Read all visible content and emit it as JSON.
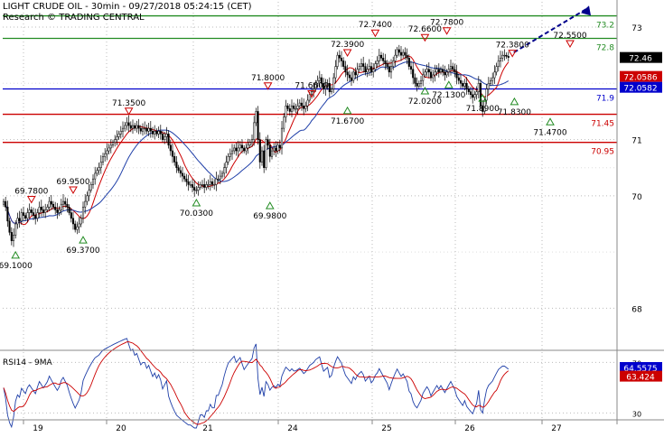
{
  "header": {
    "title": "LIGHT CRUDE OIL - 30min - 09/27/2018 05:24:15 (CET)",
    "subtitle": "Research © TRADING CENTRAL"
  },
  "colors": {
    "resistance": "#228B22",
    "pivot": "#0000CC",
    "support": "#CC0000",
    "ma_fast": "#CC0000",
    "ma_slow": "#1F3FA8",
    "candle": "#000000",
    "arrow": "#00008B",
    "price_tag": "#000000"
  },
  "chart_data": [
    {
      "type": "line",
      "panel": "price",
      "title": "LIGHT CRUDE OIL - 30min - 09/27/2018 05:24:15 (CET)",
      "ylim": [
        67.3,
        73.45
      ],
      "y_ticks": [
        "73",
        "71",
        "70",
        "68"
      ],
      "x_ticks": [
        "19",
        "20",
        "21",
        "24",
        "25",
        "26",
        "27"
      ],
      "grid": true,
      "legend": "none",
      "levels": [
        {
          "label": "73.2",
          "value": 73.2,
          "kind": "resistance"
        },
        {
          "label": "72.8",
          "value": 72.8,
          "kind": "resistance"
        },
        {
          "label": "71.9",
          "value": 71.9,
          "kind": "pivot"
        },
        {
          "label": "71.45",
          "value": 71.45,
          "kind": "support"
        },
        {
          "label": "70.95",
          "value": 70.95,
          "kind": "support"
        }
      ],
      "price_tags": [
        {
          "label": "72.46",
          "value": 72.46,
          "style": "dark"
        },
        {
          "label": "72.0586",
          "value": 72.0586,
          "style": "red"
        },
        {
          "label": "72.0582",
          "value": 72.0582,
          "style": "blue"
        }
      ],
      "highs": [
        {
          "label": "69.7800",
          "x": 14,
          "value": 69.78
        },
        {
          "label": "69.9500",
          "x": 35,
          "value": 69.95
        },
        {
          "label": "71.3500",
          "x": 63,
          "value": 71.35
        },
        {
          "label": "71.8000",
          "x": 133,
          "value": 71.8
        },
        {
          "label": "71.6600",
          "x": 155,
          "value": 71.66
        },
        {
          "label": "72.3900",
          "x": 173,
          "value": 72.39
        },
        {
          "label": "72.7400",
          "x": 187,
          "value": 72.74
        },
        {
          "label": "72.6600",
          "x": 212,
          "value": 72.66
        },
        {
          "label": "72.7800",
          "x": 223,
          "value": 72.78
        },
        {
          "label": "72.3800",
          "x": 256,
          "value": 72.38
        },
        {
          "label": "72.5500",
          "x": 285,
          "value": 72.55
        }
      ],
      "lows": [
        {
          "label": "69.1000",
          "x": 6,
          "value": 69.1
        },
        {
          "label": "69.3700",
          "x": 40,
          "value": 69.37
        },
        {
          "label": "70.0300",
          "x": 97,
          "value": 70.03
        },
        {
          "label": "69.9800",
          "x": 134,
          "value": 69.98
        },
        {
          "label": "71.6700",
          "x": 173,
          "value": 71.67
        },
        {
          "label": "72.0200",
          "x": 212,
          "value": 72.02
        },
        {
          "label": "72.1300",
          "x": 224,
          "value": 72.13
        },
        {
          "label": "71.8900",
          "x": 241,
          "value": 71.89
        },
        {
          "label": "71.8300",
          "x": 257,
          "value": 71.83
        },
        {
          "label": "71.4700",
          "x": 275,
          "value": 71.47
        }
      ],
      "candle_step": 2.2,
      "close": [
        69.9,
        69.8,
        69.55,
        69.35,
        69.2,
        69.3,
        69.5,
        69.6,
        69.55,
        69.7,
        69.65,
        69.6,
        69.7,
        69.75,
        69.7,
        69.65,
        69.6,
        69.7,
        69.8,
        69.75,
        69.7,
        69.75,
        69.8,
        69.9,
        69.85,
        69.8,
        69.75,
        69.7,
        69.75,
        69.85,
        69.9,
        69.85,
        69.8,
        69.7,
        69.6,
        69.5,
        69.4,
        69.45,
        69.5,
        69.6,
        69.8,
        69.9,
        70.0,
        70.1,
        70.2,
        70.3,
        70.4,
        70.45,
        70.5,
        70.6,
        70.7,
        70.75,
        70.8,
        70.85,
        70.9,
        70.95,
        71.0,
        71.05,
        71.1,
        71.15,
        71.2,
        71.25,
        71.3,
        71.25,
        71.2,
        71.25,
        71.2,
        71.25,
        71.2,
        71.15,
        71.2,
        71.2,
        71.15,
        71.2,
        71.15,
        71.1,
        71.15,
        71.1,
        71.15,
        71.1,
        71.0,
        71.05,
        71.1,
        70.9,
        70.8,
        70.7,
        70.6,
        70.5,
        70.45,
        70.4,
        70.35,
        70.3,
        70.25,
        70.2,
        70.2,
        70.15,
        70.1,
        70.1,
        70.15,
        70.2,
        70.2,
        70.15,
        70.2,
        70.2,
        70.25,
        70.2,
        70.2,
        70.3,
        70.3,
        70.35,
        70.4,
        70.5,
        70.6,
        70.7,
        70.75,
        70.8,
        70.85,
        70.8,
        70.85,
        70.9,
        70.85,
        70.8,
        70.85,
        70.9,
        70.95,
        71.0,
        71.3,
        71.5,
        71.0,
        70.6,
        70.8,
        70.5,
        71.0,
        70.9,
        70.7,
        70.8,
        70.85,
        70.8,
        70.9,
        70.85,
        71.2,
        71.4,
        71.6,
        71.55,
        71.5,
        71.6,
        71.55,
        71.55,
        71.6,
        71.65,
        71.6,
        71.55,
        71.6,
        71.7,
        71.8,
        71.85,
        71.9,
        72.0,
        72.05,
        72.1,
        72.0,
        71.9,
        71.95,
        72.0,
        71.85,
        71.9,
        72.1,
        72.3,
        72.5,
        72.45,
        72.4,
        72.3,
        72.2,
        72.15,
        72.1,
        72.05,
        72.2,
        72.15,
        72.25,
        72.3,
        72.35,
        72.3,
        72.2,
        72.25,
        72.3,
        72.2,
        72.25,
        72.35,
        72.4,
        72.5,
        72.45,
        72.4,
        72.35,
        72.3,
        72.2,
        72.3,
        72.4,
        72.5,
        72.6,
        72.55,
        72.5,
        72.55,
        72.5,
        72.45,
        72.3,
        72.25,
        72.1,
        72.0,
        71.95,
        72.0,
        72.05,
        72.15,
        72.2,
        72.25,
        72.2,
        72.1,
        72.15,
        72.2,
        72.25,
        72.2,
        72.25,
        72.2,
        72.15,
        72.2,
        72.25,
        72.3,
        72.25,
        72.2,
        72.1,
        72.05,
        72.0,
        71.95,
        72.0,
        71.9,
        71.85,
        71.8,
        71.75,
        71.8,
        71.85,
        72.0,
        71.6,
        71.5,
        71.7,
        71.9,
        72.0,
        72.05,
        72.1,
        72.2,
        72.3,
        72.4,
        72.45,
        72.5,
        72.5,
        72.48,
        72.46
      ]
    },
    {
      "type": "line",
      "panel": "indicator",
      "title": "RSI14 - 9MA",
      "ylim": [
        26,
        76
      ],
      "y_ticks": [
        "70",
        "30"
      ],
      "price_tags": [
        {
          "label": "64.5575",
          "value": 64.5575,
          "style": "blue"
        },
        {
          "label": "63.424",
          "value": 63.424,
          "style": "red"
        }
      ],
      "grid": true
    }
  ]
}
